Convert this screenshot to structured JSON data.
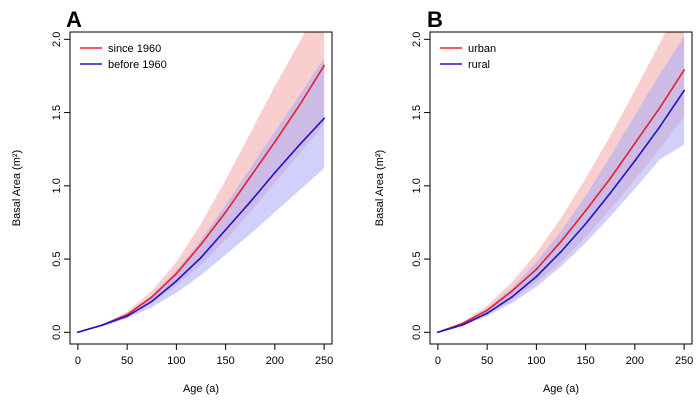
{
  "chart_data": [
    {
      "type": "line",
      "panel_label": "A",
      "xlabel": "Age (a)",
      "ylabel": "Basal Area (m²)",
      "xlim": [
        -8,
        258
      ],
      "ylim": [
        -0.08,
        2.05
      ],
      "x_ticks": [
        0,
        50,
        100,
        150,
        200,
        250
      ],
      "y_ticks": [
        0.0,
        0.5,
        1.0,
        1.5,
        2.0
      ],
      "x_tick_labels": [
        "0",
        "50",
        "100",
        "150",
        "200",
        "250"
      ],
      "y_tick_labels": [
        "0.0",
        "0.5",
        "1.0",
        "1.5",
        "2.0"
      ],
      "legend_position": "top-left",
      "x": [
        0,
        25,
        50,
        75,
        100,
        125,
        150,
        175,
        200,
        225,
        250
      ],
      "series": [
        {
          "name": "since 1960",
          "color": "#e8212a",
          "band_color": "#f4a6a6",
          "values": [
            0.0,
            0.05,
            0.12,
            0.24,
            0.4,
            0.6,
            0.82,
            1.06,
            1.3,
            1.55,
            1.82
          ],
          "lower": [
            0.0,
            0.045,
            0.1,
            0.2,
            0.32,
            0.46,
            0.63,
            0.82,
            1.02,
            1.22,
            1.42
          ],
          "upper": [
            0.0,
            0.055,
            0.14,
            0.28,
            0.48,
            0.74,
            1.04,
            1.36,
            1.68,
            1.98,
            2.3
          ]
        },
        {
          "name": "before 1960",
          "color": "#1c14c8",
          "band_color": "#a9a9f7",
          "values": [
            0.0,
            0.05,
            0.11,
            0.21,
            0.35,
            0.51,
            0.7,
            0.89,
            1.09,
            1.28,
            1.46
          ],
          "lower": [
            0.0,
            0.04,
            0.095,
            0.17,
            0.27,
            0.39,
            0.53,
            0.67,
            0.82,
            0.97,
            1.12
          ],
          "upper": [
            0.0,
            0.055,
            0.13,
            0.25,
            0.42,
            0.63,
            0.87,
            1.12,
            1.37,
            1.62,
            1.87
          ]
        }
      ]
    },
    {
      "type": "line",
      "panel_label": "B",
      "xlabel": "Age (a)",
      "ylabel": "Basal Area (m²)",
      "xlim": [
        -8,
        258
      ],
      "ylim": [
        -0.08,
        2.05
      ],
      "x_ticks": [
        0,
        50,
        100,
        150,
        200,
        250
      ],
      "y_ticks": [
        0.0,
        0.5,
        1.0,
        1.5,
        2.0
      ],
      "x_tick_labels": [
        "0",
        "50",
        "100",
        "150",
        "200",
        "250"
      ],
      "y_tick_labels": [
        "0.0",
        "0.5",
        "1.0",
        "1.5",
        "2.0"
      ],
      "legend_position": "top-left",
      "x": [
        0,
        25,
        50,
        75,
        100,
        125,
        150,
        175,
        200,
        225,
        250
      ],
      "series": [
        {
          "name": "urban",
          "color": "#e8212a",
          "band_color": "#f4a6a6",
          "values": [
            0.0,
            0.06,
            0.15,
            0.28,
            0.43,
            0.62,
            0.83,
            1.05,
            1.29,
            1.53,
            1.79
          ],
          "lower": [
            0.0,
            0.05,
            0.12,
            0.22,
            0.34,
            0.48,
            0.65,
            0.84,
            1.04,
            1.25,
            1.47
          ],
          "upper": [
            0.0,
            0.07,
            0.18,
            0.34,
            0.54,
            0.78,
            1.05,
            1.34,
            1.65,
            1.97,
            2.3
          ]
        },
        {
          "name": "rural",
          "color": "#1c14c8",
          "band_color": "#a9a9f7",
          "values": [
            0.0,
            0.05,
            0.13,
            0.24,
            0.38,
            0.55,
            0.74,
            0.95,
            1.17,
            1.4,
            1.65
          ],
          "lower": [
            0.0,
            0.045,
            0.11,
            0.2,
            0.31,
            0.45,
            0.61,
            0.79,
            0.98,
            1.18,
            1.28
          ],
          "upper": [
            0.0,
            0.06,
            0.16,
            0.3,
            0.48,
            0.69,
            0.93,
            1.2,
            1.48,
            1.76,
            2.02
          ]
        }
      ]
    }
  ]
}
